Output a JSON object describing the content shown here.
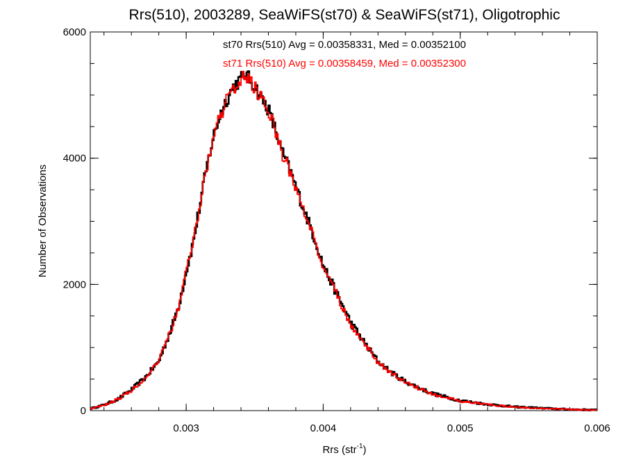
{
  "chart_data": {
    "type": "line",
    "title": "Rrs(510), 2003289, SeaWiFS(st70) & SeaWiFS(st71), Oligotrophic",
    "xlabel_base": "Rrs (str",
    "xlabel_sup": "-1",
    "xlabel_end": ")",
    "ylabel": "Number of Observations",
    "xlim": [
      0.0023,
      0.006
    ],
    "ylim": [
      0,
      6000
    ],
    "xticks": [
      0.003,
      0.004,
      0.005,
      0.006
    ],
    "xtick_labels": [
      "0.003",
      "0.004",
      "0.005",
      "0.006"
    ],
    "yticks": [
      0,
      2000,
      4000,
      6000
    ],
    "ytick_labels": [
      "0",
      "2000",
      "4000",
      "6000"
    ],
    "annotations": [
      {
        "text": "st70 Rrs(510) Avg = 0.00358331, Med = 0.00352100",
        "color": "#000000"
      },
      {
        "text": "st71 Rrs(510) Avg = 0.00358459, Med = 0.00352300",
        "color": "#ff0000"
      }
    ],
    "series": [
      {
        "name": "st70",
        "color": "#000000",
        "x": [
          0.0023,
          0.0024,
          0.0025,
          0.0026,
          0.0027,
          0.0028,
          0.0029,
          0.00295,
          0.003,
          0.00305,
          0.0031,
          0.00315,
          0.0032,
          0.00325,
          0.0033,
          0.00335,
          0.0034,
          0.00343,
          0.00346,
          0.0035,
          0.00355,
          0.0036,
          0.00365,
          0.0037,
          0.00375,
          0.0038,
          0.00385,
          0.0039,
          0.00395,
          0.004,
          0.0041,
          0.0042,
          0.0043,
          0.0044,
          0.0045,
          0.0046,
          0.0047,
          0.0048,
          0.005,
          0.0052,
          0.0054,
          0.0056,
          0.0058,
          0.006
        ],
        "y": [
          30,
          90,
          180,
          330,
          520,
          780,
          1350,
          1700,
          2200,
          2650,
          3250,
          3850,
          4350,
          4700,
          4950,
          5150,
          5250,
          5350,
          5250,
          5150,
          4950,
          4780,
          4450,
          4100,
          3850,
          3550,
          3250,
          2950,
          2650,
          2300,
          1850,
          1400,
          1080,
          780,
          600,
          460,
          360,
          270,
          160,
          100,
          60,
          40,
          20,
          10
        ]
      },
      {
        "name": "st71",
        "color": "#ff0000",
        "x": [
          0.0023,
          0.0024,
          0.0025,
          0.0026,
          0.0027,
          0.0028,
          0.0029,
          0.00295,
          0.003,
          0.00305,
          0.0031,
          0.00315,
          0.0032,
          0.00325,
          0.0033,
          0.00335,
          0.0034,
          0.00343,
          0.00346,
          0.0035,
          0.00355,
          0.0036,
          0.00365,
          0.0037,
          0.00375,
          0.0038,
          0.00385,
          0.0039,
          0.00395,
          0.004,
          0.0041,
          0.0042,
          0.0043,
          0.0044,
          0.0045,
          0.0046,
          0.0047,
          0.0048,
          0.005,
          0.0052,
          0.0054,
          0.0056,
          0.0058,
          0.006
        ],
        "y": [
          30,
          90,
          180,
          320,
          510,
          770,
          1340,
          1690,
          2190,
          2640,
          3240,
          3840,
          4330,
          4680,
          4930,
          5120,
          5230,
          5330,
          5230,
          5130,
          4930,
          4760,
          4430,
          4080,
          3830,
          3530,
          3230,
          2930,
          2630,
          2280,
          1830,
          1380,
          1060,
          770,
          590,
          450,
          350,
          260,
          150,
          95,
          55,
          35,
          18,
          8
        ]
      }
    ]
  }
}
